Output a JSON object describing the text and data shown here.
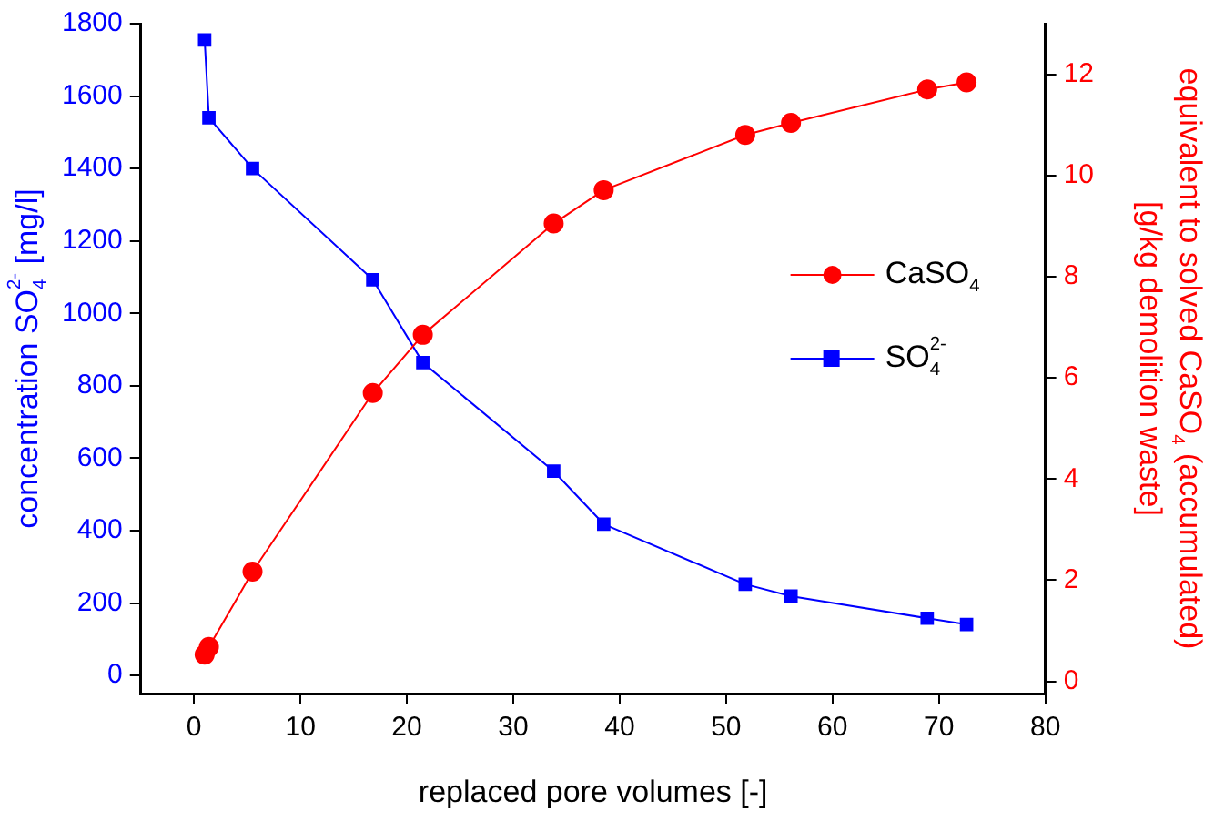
{
  "chart_data": {
    "type": "line",
    "xlabel": "replaced pore volumes [-]",
    "ylabel": "concentration SO$_{4}$$^{2-}$ [mg/l]",
    "y2label": "equivalent to solved CaSO$_{4}$ (accumulated) [g/kg demolition waste]",
    "xlim": [
      -5,
      80
    ],
    "xticks": [
      0,
      10,
      20,
      30,
      40,
      50,
      60,
      70,
      80
    ],
    "ylim": [
      -50,
      1800
    ],
    "yticks": [
      0,
      200,
      400,
      600,
      800,
      1000,
      1200,
      1400,
      1600,
      1800
    ],
    "y2lim": [
      -0.24,
      13
    ],
    "y2ticks": [
      0,
      2,
      4,
      6,
      8,
      10,
      12
    ],
    "legend": "right",
    "grid": false,
    "series": [
      {
        "name": "CaSO$_{4}$",
        "color": "#ff0000",
        "axis": "y2",
        "marker": "circle",
        "x": [
          1.0,
          1.4,
          5.5,
          16.8,
          21.5,
          33.8,
          38.5,
          51.8,
          56.1,
          68.9,
          72.6
        ],
        "values": [
          0.53,
          0.68,
          2.17,
          5.7,
          6.85,
          9.05,
          9.71,
          10.8,
          11.04,
          11.7,
          11.84
        ]
      },
      {
        "name": "SO$_{4}$$^{2-}$",
        "color": "#0000ff",
        "axis": "y",
        "marker": "square",
        "x": [
          1.0,
          1.4,
          5.5,
          16.8,
          21.5,
          33.8,
          38.5,
          51.8,
          56.1,
          68.9,
          72.6
        ],
        "values": [
          1755,
          1540,
          1400,
          1093,
          864,
          564,
          418,
          252,
          219,
          158,
          141
        ]
      }
    ]
  }
}
